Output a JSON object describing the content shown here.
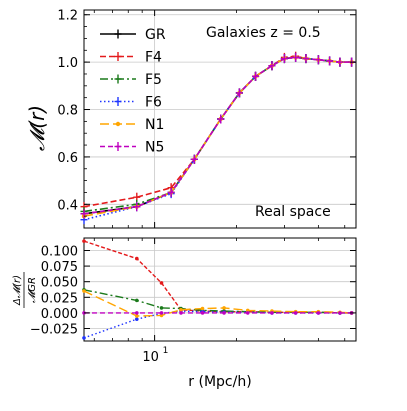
{
  "chart_data": [
    {
      "type": "line",
      "panel": "top",
      "xscale": "log",
      "xlim": [
        5.5,
        55
      ],
      "ylim": [
        0.3,
        1.22
      ],
      "ylabel": "𝓜(r)",
      "yticks": [
        0.4,
        0.6,
        0.8,
        1.0,
        1.2
      ],
      "yticklabels": [
        "0.4",
        "0.6",
        "0.8",
        "1.0",
        "1.2"
      ],
      "grid": true,
      "legend_position": "top-left",
      "annotations": {
        "title": "Galaxies z = 0.5",
        "space": "Real space"
      },
      "x": [
        5.5,
        8.6,
        11.5,
        14.0,
        17.5,
        20.5,
        23.5,
        27.0,
        30.0,
        33.0,
        36.0,
        40.0,
        44.0,
        48.0,
        53.0
      ],
      "series": [
        {
          "name": "GR",
          "color": "#000000",
          "dash": "",
          "marker": "plus",
          "values": [
            0.36,
            0.39,
            0.45,
            0.59,
            0.76,
            0.87,
            0.94,
            0.985,
            1.015,
            1.02,
            1.015,
            1.01,
            1.005,
            1.0,
            1.0
          ]
        },
        {
          "name": "F4",
          "color": "#e41a1c",
          "dash": "6,3",
          "marker": "plus",
          "values": [
            0.39,
            0.43,
            0.47,
            0.59,
            0.76,
            0.87,
            0.94,
            0.985,
            1.02,
            1.025,
            1.015,
            1.01,
            1.005,
            1.0,
            1.0
          ]
        },
        {
          "name": "F5",
          "color": "#1b7a1b",
          "dash": "8,3,2,3",
          "marker": "plus",
          "values": [
            0.37,
            0.4,
            0.45,
            0.59,
            0.76,
            0.87,
            0.94,
            0.985,
            1.015,
            1.02,
            1.015,
            1.01,
            1.005,
            1.0,
            1.0
          ]
        },
        {
          "name": "F6",
          "color": "#1f35ff",
          "dash": "1.5,2.5",
          "marker": "plus",
          "values": [
            0.335,
            0.39,
            0.445,
            0.59,
            0.76,
            0.87,
            0.94,
            0.985,
            1.015,
            1.02,
            1.015,
            1.01,
            1.005,
            1.0,
            1.0
          ]
        },
        {
          "name": "N1",
          "color": "#ffa500",
          "dash": "9,4",
          "marker": "dot",
          "values": [
            0.35,
            0.39,
            0.45,
            0.59,
            0.76,
            0.87,
            0.94,
            0.985,
            1.015,
            1.02,
            1.015,
            1.01,
            1.005,
            1.0,
            1.0
          ]
        },
        {
          "name": "N5",
          "color": "#bf00bf",
          "dash": "5,3",
          "marker": "plus",
          "values": [
            0.36,
            0.39,
            0.45,
            0.59,
            0.76,
            0.87,
            0.94,
            0.985,
            1.015,
            1.02,
            1.015,
            1.01,
            1.005,
            1.0,
            1.0
          ]
        }
      ]
    },
    {
      "type": "line",
      "panel": "bottom",
      "xscale": "log",
      "xlim": [
        5.5,
        55
      ],
      "ylim": [
        -0.045,
        0.12
      ],
      "xlabel": "r (Mpc/h)",
      "ylabel_num": "Δ𝓜(r)",
      "ylabel_den": "𝓜GR",
      "yticks": [
        -0.025,
        0.0,
        0.025,
        0.05,
        0.075,
        0.1
      ],
      "yticklabels": [
        "−0.025",
        "0.000",
        "0.025",
        "0.050",
        "0.075",
        "0.100"
      ],
      "xtick_label": "10",
      "xtick_exponent": "1",
      "xtick_value": 10,
      "grid": true,
      "series": [
        {
          "name": "F4",
          "color": "#e41a1c",
          "dash": "4,2",
          "x": [
            5.5,
            8.6,
            10.6,
            12.5,
            15,
            18,
            22,
            27,
            33,
            40,
            48,
            53
          ],
          "values": [
            0.115,
            0.087,
            0.048,
            0.005,
            0.003,
            0.002,
            0.002,
            0.001,
            0.001,
            0.001,
            0.0,
            0.0
          ]
        },
        {
          "name": "F5",
          "color": "#1b7a1b",
          "dash": "8,3,2,3",
          "x": [
            5.5,
            8.6,
            10.6,
            12.5,
            15,
            18,
            22,
            27,
            33,
            40,
            48,
            53
          ],
          "values": [
            0.037,
            0.02,
            0.008,
            0.007,
            0.004,
            0.003,
            0.002,
            0.001,
            0.001,
            0.001,
            0.0,
            0.0
          ]
        },
        {
          "name": "F6",
          "color": "#1f35ff",
          "dash": "1.5,2.5",
          "x": [
            5.5,
            8.6,
            10.6,
            12.5,
            15,
            18,
            22,
            27,
            33,
            40,
            48,
            53
          ],
          "values": [
            -0.04,
            -0.01,
            -0.001,
            0.003,
            0.002,
            0.001,
            0.001,
            0.0,
            0.0,
            0.0,
            0.0,
            0.0
          ]
        },
        {
          "name": "N1",
          "color": "#ffa500",
          "dash": "9,4",
          "x": [
            5.5,
            8.6,
            10.6,
            12.5,
            15,
            18,
            22,
            27,
            33,
            40,
            48,
            53
          ],
          "values": [
            0.035,
            -0.005,
            -0.004,
            0.005,
            0.007,
            0.008,
            0.004,
            0.003,
            0.002,
            0.002,
            0.001,
            0.0
          ]
        },
        {
          "name": "N5",
          "color": "#bf00bf",
          "dash": "5,3",
          "x": [
            5.5,
            8.6,
            10.6,
            12.5,
            15,
            18,
            22,
            27,
            33,
            40,
            48,
            53
          ],
          "values": [
            0.0,
            0.0,
            0.0,
            0.0,
            0.0,
            0.0,
            0.0,
            0.0,
            0.0,
            0.0,
            0.0,
            0.0
          ]
        }
      ]
    }
  ]
}
